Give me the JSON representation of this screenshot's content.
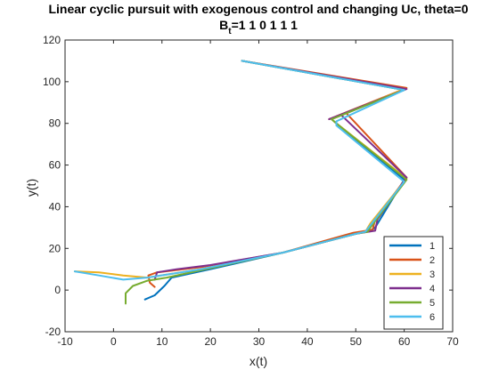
{
  "chart_data": {
    "type": "line",
    "title": "Linear cyclic pursuit with exogenous control and changing Uc, theta=0",
    "subtitle_lhs": "B",
    "subtitle_sub": "t",
    "subtitle_rhs": "=1  1  0  1  1  1",
    "xlabel": "x(t)",
    "ylabel": "y(t)",
    "xlim": [
      -10,
      70
    ],
    "ylim": [
      -20,
      120
    ],
    "xticks": [
      -10,
      0,
      10,
      20,
      30,
      40,
      50,
      60,
      70
    ],
    "yticks": [
      -20,
      0,
      20,
      40,
      60,
      80,
      100,
      120
    ],
    "grid": false,
    "legend_position": "bottom-right",
    "series": [
      {
        "name": "1",
        "color": "#0072BD",
        "x": [
          6.5,
          8.5,
          10.5,
          12,
          20,
          35,
          50,
          53,
          54,
          60,
          46,
          45,
          60,
          26.5
        ],
        "y": [
          -4.5,
          -2.5,
          2,
          6,
          10,
          18,
          27,
          28.5,
          30,
          53,
          80,
          82,
          96,
          110
        ]
      },
      {
        "name": "2",
        "color": "#D95319",
        "x": [
          8.5,
          7.5,
          7.2,
          9,
          18,
          35,
          49.5,
          53.5,
          54,
          60.5,
          48,
          44.5,
          60.5,
          26.5
        ],
        "y": [
          1.5,
          3.5,
          7,
          8.5,
          11,
          18,
          27.5,
          29,
          34,
          54,
          85,
          82,
          97,
          110
        ]
      },
      {
        "name": "3",
        "color": "#EDB120",
        "x": [
          -8,
          -3,
          2,
          7,
          18,
          35,
          50,
          52,
          53,
          60.5,
          46,
          45,
          60,
          26.5
        ],
        "y": [
          9,
          8.5,
          7,
          6,
          10,
          18,
          27,
          28,
          32,
          53.5,
          80,
          82,
          96.5,
          110
        ]
      },
      {
        "name": "4",
        "color": "#7E2F8E",
        "x": [
          8.5,
          9,
          13,
          20,
          35,
          50,
          54,
          54.5,
          60.5,
          47,
          44.5,
          60.5,
          26.5
        ],
        "y": [
          5,
          8.5,
          10,
          12,
          18,
          27,
          28.5,
          34,
          54,
          84,
          82,
          96.5,
          110
        ]
      },
      {
        "name": "5",
        "color": "#77AC30",
        "x": [
          2.5,
          2.5,
          4,
          7,
          11,
          20,
          35,
          50,
          52.5,
          53,
          60.5,
          46,
          45,
          60,
          26.5
        ],
        "y": [
          -6.5,
          -1.5,
          2,
          4.5,
          6,
          10.5,
          18,
          27,
          28,
          30,
          53,
          80,
          82,
          96,
          110
        ]
      },
      {
        "name": "6",
        "color": "#4DBEEE",
        "x": [
          -8,
          -3,
          2,
          7,
          18,
          35,
          50,
          52,
          60,
          46,
          46,
          60,
          26.5
        ],
        "y": [
          9,
          7,
          5,
          6,
          10,
          18,
          27,
          28,
          52,
          79,
          81,
          96,
          110
        ]
      }
    ]
  }
}
